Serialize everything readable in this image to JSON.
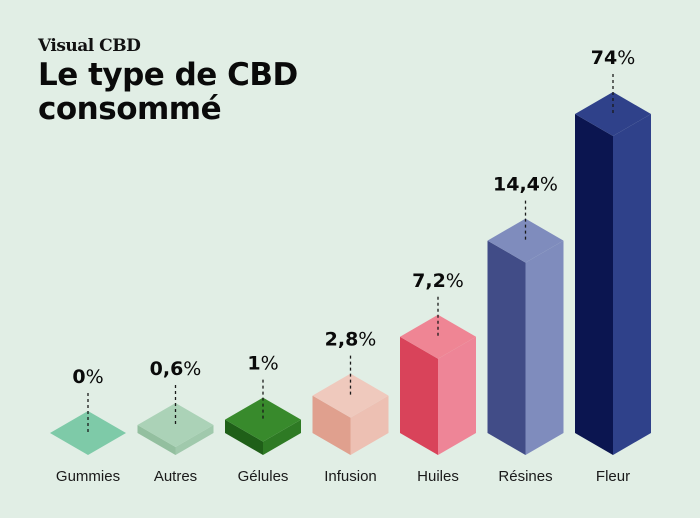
{
  "header": {
    "brand": "Visual CBD",
    "title_line1": "Le type de CBD",
    "title_line2": "consommé"
  },
  "chart_data": {
    "type": "bar",
    "style": "isometric-3d",
    "title": "Le type de CBD consommé",
    "xlabel": "",
    "ylabel": "",
    "ylim": [
      0,
      74
    ],
    "unit": "%",
    "categories": [
      "Gummies",
      "Autres",
      "Gélules",
      "Infusion",
      "Huiles",
      "Résines",
      "Fleur"
    ],
    "values": [
      0,
      0.6,
      1,
      2.8,
      7.2,
      14.4,
      74
    ],
    "value_labels": [
      "0",
      "0,6",
      "1",
      "2,8",
      "7,2",
      "14,4",
      "74"
    ],
    "colors": [
      {
        "top": "#7ecaa8",
        "left": "#6ab893",
        "right": "#74c29f"
      },
      {
        "top": "#abd2b7",
        "left": "#93bf9f",
        "right": "#a0c9ac"
      },
      {
        "top": "#388a2c",
        "left": "#1f5f18",
        "right": "#2e7a24"
      },
      {
        "top": "#efc9bd",
        "left": "#e0a08e",
        "right": "#edc0b3"
      },
      {
        "top": "#ef8594",
        "left": "#d9435a",
        "right": "#ee8597"
      },
      {
        "top": "#7f8cbd",
        "left": "#414c87",
        "right": "#7f8cbd"
      },
      {
        "top": "#2f418a",
        "left": "#0b1550",
        "right": "#2f418a"
      }
    ],
    "grid": false,
    "legend": "none"
  }
}
